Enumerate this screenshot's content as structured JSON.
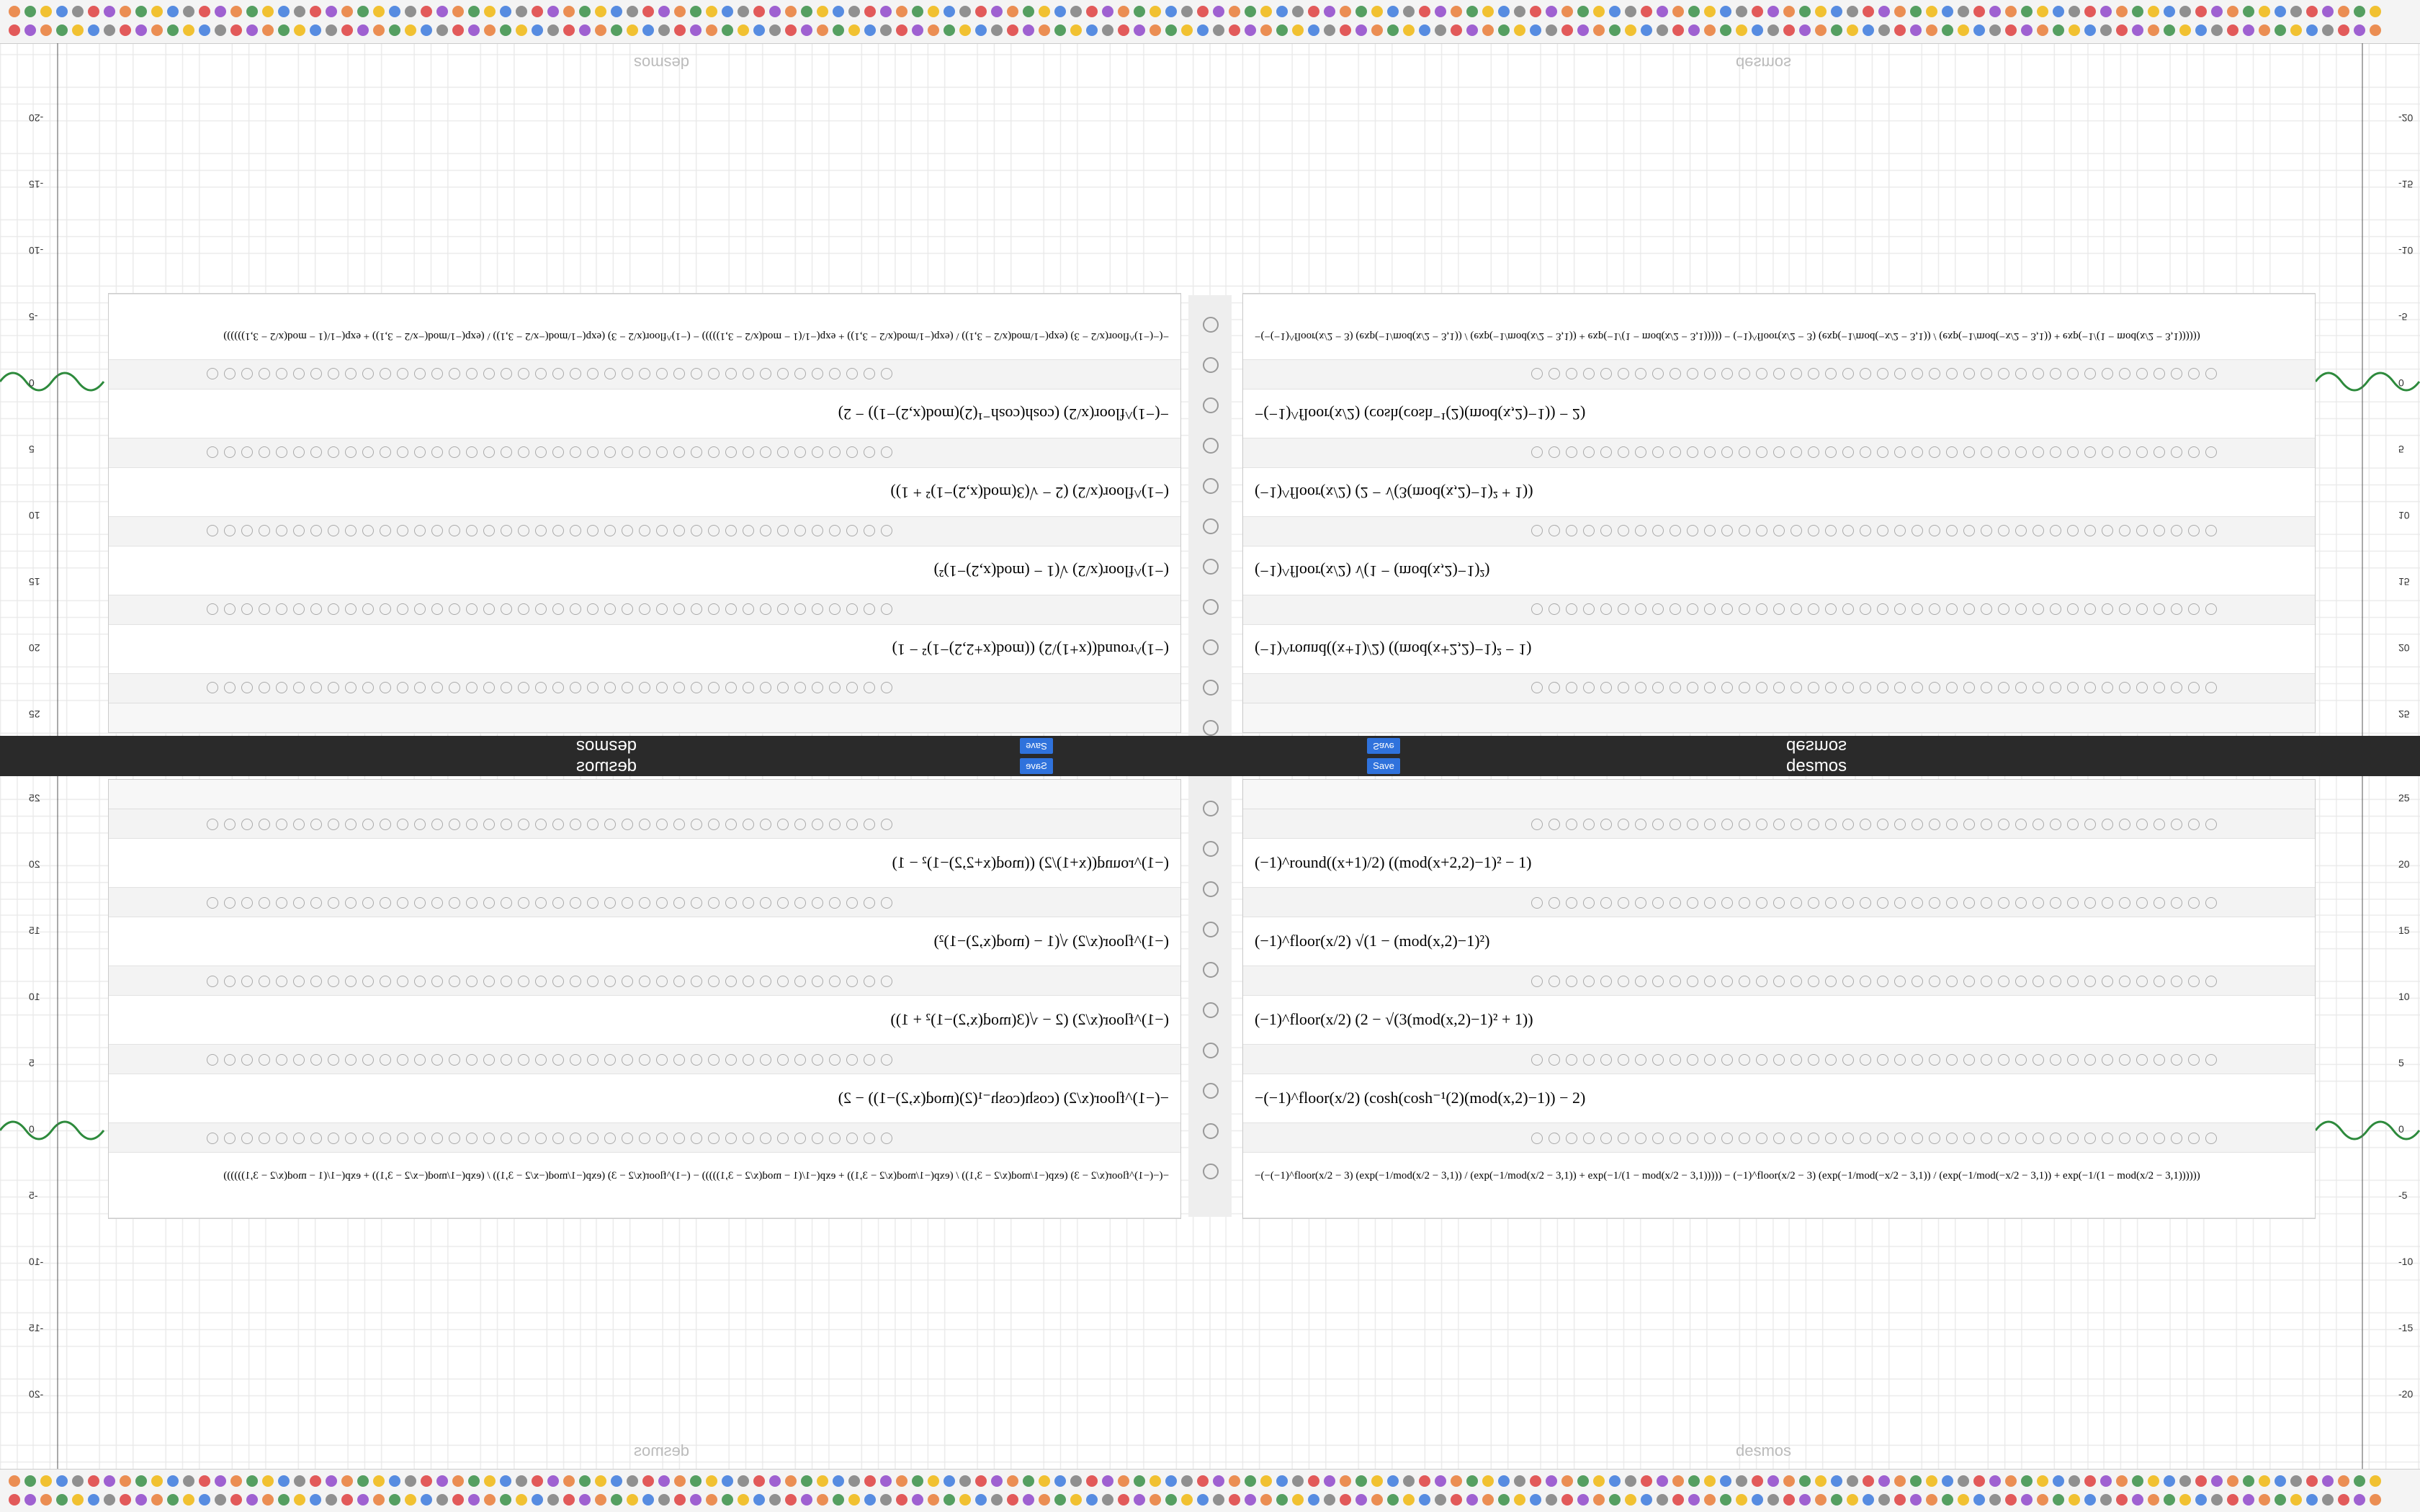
{
  "header": {
    "brand": "desmos",
    "save": "Save"
  },
  "expressions": [
    "(−1)^round((x+1)/2) ((mod(x+2,2)−1)² − 1)",
    "(−1)^floor(x/2) √(1 − (mod(x,2)−1)²)",
    "(−1)^floor(x/2) (2 − √(3(mod(x,2)−1)² + 1))",
    "−(−1)^floor(x/2) (cosh(cosh⁻¹(2)(mod(x,2)−1)) − 2)",
    "−(−(−1)^floor(x/2 − 3) (exp(−1/mod(x/2 − 3,1)) / (exp(−1/mod(x/2 − 3,1)) + exp(−1/(1 − mod(x/2 − 3,1))))) − (−1)^floor(x/2 − 3) (exp(−1/mod(−x/2 − 3,1)) / (exp(−1/mod(−x/2 − 3,1)) + exp(−1/(1 − mod(x/2 − 3,1))))))"
  ],
  "axis_labels": [
    "25",
    "20",
    "15",
    "10",
    "5",
    "0",
    "-5",
    "-10",
    "-15",
    "-20"
  ]
}
